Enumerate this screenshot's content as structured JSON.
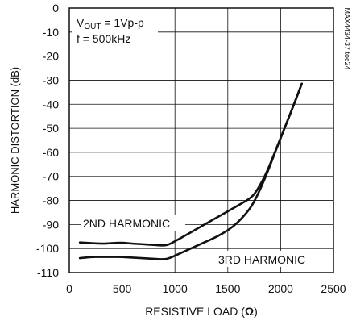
{
  "chart_data": {
    "type": "line",
    "xlabel_main": "RESISTIVE LOAD (",
    "xlabel_symbol": "Ω",
    "xlabel_end": ")",
    "ylabel": "HARMONIC DISTORTION (dB)",
    "xlim": [
      0,
      2500
    ],
    "ylim": [
      -110,
      0
    ],
    "x_ticks": [
      0,
      500,
      1000,
      1500,
      2000,
      2500
    ],
    "y_ticks": [
      0,
      -10,
      -20,
      -30,
      -40,
      -50,
      -60,
      -70,
      -80,
      -90,
      -100,
      -110
    ],
    "grid": true,
    "conditions": {
      "vout_prefix": "V",
      "vout_sub": "OUT",
      "vout_value": " = 1Vp-p",
      "freq": "f = 500kHz"
    },
    "side_label": "MAX4434-37 toc24",
    "series": [
      {
        "name": "2ND HARMONIC",
        "x": [
          100,
          200,
          300,
          400,
          500,
          600,
          700,
          800,
          900,
          950,
          1000,
          1100,
          1200,
          1300,
          1400,
          1500,
          1600,
          1700,
          1750,
          1800,
          1850,
          1900,
          2000,
          2100,
          2200
        ],
        "y": [
          -97.5,
          -97.7,
          -98,
          -97.8,
          -97.5,
          -98,
          -98.2,
          -98.5,
          -98.8,
          -98.2,
          -97,
          -94.5,
          -92,
          -89.5,
          -87,
          -84.5,
          -82,
          -79.5,
          -77.5,
          -74,
          -70,
          -65,
          -54,
          -43,
          -31.5
        ]
      },
      {
        "name": "3RD HARMONIC",
        "x": [
          100,
          200,
          300,
          400,
          500,
          600,
          700,
          800,
          900,
          950,
          1000,
          1100,
          1200,
          1300,
          1400,
          1500,
          1600,
          1700,
          1750,
          1800,
          1850,
          1900,
          2000,
          2100,
          2200
        ],
        "y": [
          -104,
          -103.5,
          -103.5,
          -103.5,
          -103.5,
          -103.8,
          -104,
          -104.3,
          -104.5,
          -104,
          -103,
          -101,
          -99,
          -97,
          -95,
          -92.5,
          -89,
          -84,
          -80.5,
          -76,
          -71,
          -65.5,
          -54,
          -43,
          -31.5
        ]
      }
    ]
  }
}
